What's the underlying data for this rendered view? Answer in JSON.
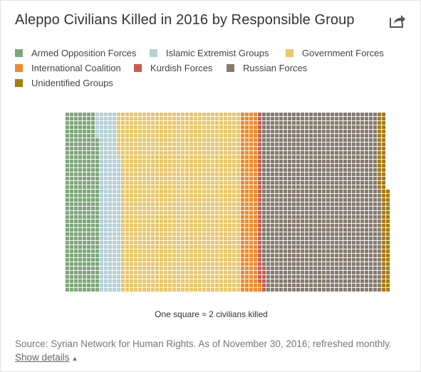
{
  "header": {
    "title": "Aleppo Civilians Killed in 2016 by Responsible Group",
    "share_icon": "share-icon"
  },
  "legend": {
    "items": [
      {
        "label": "Armed Opposition Forces",
        "color": "#7fa77a"
      },
      {
        "label": "Islamic Extremist Groups",
        "color": "#b5d0d6"
      },
      {
        "label": "Government Forces",
        "color": "#e8c76a"
      },
      {
        "label": "International Coalition",
        "color": "#f08a2a"
      },
      {
        "label": "Kurdish Forces",
        "color": "#cc5a4e"
      },
      {
        "label": "Russian Forces",
        "color": "#857b6f"
      },
      {
        "label": "Unidentified Groups",
        "color": "#a87a10"
      }
    ]
  },
  "chart_data": {
    "type": "waffle",
    "title": "Aleppo Civilians Killed in 2016 by Responsible Group",
    "unit_note": "One square ≈ 2 civilians killed",
    "rows": 42,
    "fill_order": "column-major, bottom to top, left to right",
    "series": [
      {
        "name": "Armed Opposition Forces",
        "squares": 330
      },
      {
        "name": "Islamic Extremist Groups",
        "squares": 206
      },
      {
        "name": "Government Forces",
        "squares": 1186
      },
      {
        "name": "International Coalition",
        "squares": 170
      },
      {
        "name": "Kurdish Forces",
        "squares": 46
      },
      {
        "name": "Russian Forces",
        "squares": 1152
      },
      {
        "name": "Unidentified Groups",
        "squares": 84
      }
    ]
  },
  "footer": {
    "note": "One square ≈ 2 civilians killed",
    "source": "Source: Syrian Network for Human Rights. As of November 30, 2016; refreshed monthly.",
    "show_details": "Show details",
    "caret_icon": "caret-up-icon"
  }
}
